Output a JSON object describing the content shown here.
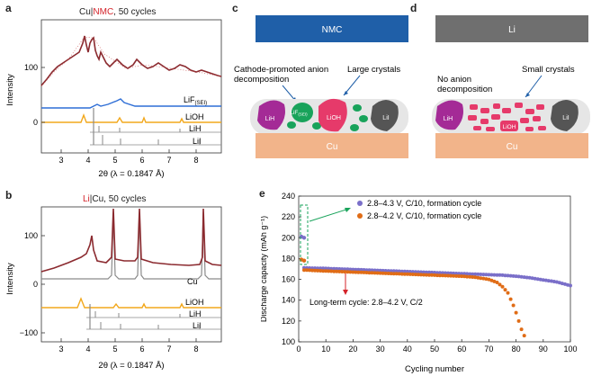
{
  "panels": {
    "a": {
      "label": "a",
      "title_pre": "Cu|",
      "title_hl": "NMC",
      "title_post": ", 50 cycles",
      "ylabel": "Intensity",
      "xlabel": "2θ (λ = 0.1847 Å)",
      "yticks": [
        "100",
        "0"
      ],
      "xticks": [
        "3",
        "4",
        "5",
        "6",
        "7",
        "8"
      ],
      "traces": [
        "LiF",
        "(SEI)",
        "LiOH",
        "LiH",
        "LiI"
      ]
    },
    "b": {
      "label": "b",
      "title_hl": "Li",
      "title_post": "|Cu, 50 cycles",
      "ylabel": "Intensity",
      "xlabel": "2θ (λ = 0.1847 Å)",
      "yticks": [
        "100",
        "0",
        "−100"
      ],
      "xticks": [
        "3",
        "4",
        "5",
        "6",
        "7",
        "8"
      ],
      "traces": [
        "Cu",
        "LiOH",
        "LiH",
        "LiI"
      ]
    },
    "c": {
      "label": "c",
      "top_bar": "NMC",
      "substrate": "Cu",
      "caption1": "Cathode-promoted anion",
      "caption1b": "decomposition",
      "caption2": "Large crystals",
      "p1": "LiH",
      "p2": "LiF",
      "p2sub": "(SEI)",
      "p3": "LiOH",
      "p4": "LiI"
    },
    "d": {
      "label": "d",
      "top_bar": "Li",
      "substrate": "Cu",
      "caption1": "No anion",
      "caption1b": "decomposition",
      "caption2": "Small crystals",
      "p1": "LiH",
      "p3": "LiOH",
      "p4": "LiI"
    },
    "e": {
      "label": "e",
      "ylabel": "Discharge capacity (mAh g⁻¹)",
      "xlabel": "Cycling number",
      "annotation": "Long-term cycle: 2.8–4.2 V, C/2",
      "legend_pos": "top-left"
    }
  },
  "colors": {
    "purple": "#7a6fc9",
    "orange": "#e06c16",
    "maroon": "#8b2a2f",
    "blue": "#2f6fd6",
    "yellow": "#f2a81d",
    "grey": "#8a8a8a",
    "nmc_blue": "#1f5fa8",
    "li_grey": "#6f6f6f",
    "cu": "#f2b48a",
    "green": "#19a35b"
  },
  "chart_data": [
    {
      "type": "line",
      "panel": "e",
      "xlim": [
        0,
        100
      ],
      "ylim": [
        100,
        240
      ],
      "xticks": [
        0,
        10,
        20,
        30,
        40,
        50,
        60,
        70,
        80,
        90,
        100
      ],
      "yticks": [
        100,
        120,
        140,
        160,
        180,
        200,
        220,
        240
      ],
      "series": [
        {
          "name": "2.8–4.3 V, C/10, formation cycle",
          "color": "#7a6fc9",
          "formation": [
            [
              1,
              201
            ],
            [
              2,
              200
            ]
          ],
          "x": [
            2,
            10,
            20,
            30,
            40,
            50,
            60,
            70,
            75,
            80,
            85,
            90,
            95,
            100
          ],
          "values": [
            171,
            170.5,
            169.5,
            168.5,
            167.5,
            166.5,
            165.5,
            164.5,
            164,
            163,
            161.5,
            159.5,
            157.5,
            154
          ]
        },
        {
          "name": "2.8–4.2 V, C/10, formation cycle",
          "color": "#e06c16",
          "formation": [
            [
              1,
              179
            ],
            [
              2,
              178
            ]
          ],
          "x": [
            2,
            10,
            20,
            30,
            40,
            50,
            60,
            65,
            70,
            73,
            75,
            77,
            78,
            79,
            80,
            81,
            82,
            83
          ],
          "values": [
            169,
            168,
            167,
            166,
            165,
            164,
            163,
            162,
            160,
            157,
            153,
            147,
            141,
            135,
            128,
            120,
            112,
            106
          ]
        }
      ]
    }
  ]
}
